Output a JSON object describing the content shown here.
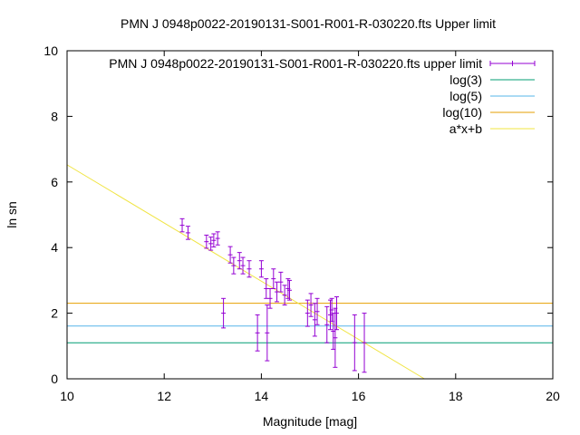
{
  "chart_data": {
    "type": "scatter",
    "title": "PMN J 0948p0022-20190131-S001-R001-R-030220.fts Upper limit",
    "xlabel": "Magnitude [mag]",
    "ylabel": "ln sn",
    "xlim": [
      10,
      20
    ],
    "ylim": [
      0,
      10
    ],
    "x_ticks": [
      10,
      12,
      14,
      16,
      18,
      20
    ],
    "y_ticks": [
      0,
      2,
      4,
      6,
      8,
      10
    ],
    "x_tick_labels": [
      "10",
      "12",
      "14",
      "16",
      "18",
      "20"
    ],
    "y_tick_labels": [
      "0",
      "2",
      "4",
      "6",
      "8",
      "10"
    ],
    "grid": false,
    "legend_placement": "top-right",
    "colors": {
      "series": "#9400d3",
      "log3": "#009e73",
      "log5": "#56b4e9",
      "log10": "#e69f00",
      "fit": "#f0e442"
    },
    "legend": [
      {
        "label": "PMN J 0948p0022-20190131-S001-R001-R-030220.fts upper limit",
        "kind": "errorbar",
        "color": "#9400d3"
      },
      {
        "label": "log(3)",
        "kind": "line",
        "color": "#009e73"
      },
      {
        "label": "log(5)",
        "kind": "line",
        "color": "#56b4e9"
      },
      {
        "label": "log(10)",
        "kind": "line",
        "color": "#e69f00"
      },
      {
        "label": "a*x+b",
        "kind": "line",
        "color": "#f0e442"
      }
    ],
    "series": [
      {
        "name": "PMN J 0948p0022-20190131-S001-R001-R-030220.fts upper limit",
        "points": [
          {
            "x": 12.37,
            "y": 4.68,
            "err": 0.2
          },
          {
            "x": 12.49,
            "y": 4.45,
            "err": 0.2
          },
          {
            "x": 12.87,
            "y": 4.18,
            "err": 0.2
          },
          {
            "x": 12.96,
            "y": 4.12,
            "err": 0.2
          },
          {
            "x": 13.02,
            "y": 4.22,
            "err": 0.2
          },
          {
            "x": 13.1,
            "y": 4.28,
            "err": 0.2
          },
          {
            "x": 13.22,
            "y": 2.0,
            "err": 0.45
          },
          {
            "x": 13.36,
            "y": 3.78,
            "err": 0.25
          },
          {
            "x": 13.43,
            "y": 3.45,
            "err": 0.25
          },
          {
            "x": 13.55,
            "y": 3.6,
            "err": 0.25
          },
          {
            "x": 13.62,
            "y": 3.45,
            "err": 0.25
          },
          {
            "x": 13.75,
            "y": 3.35,
            "err": 0.25
          },
          {
            "x": 13.92,
            "y": 1.4,
            "err": 0.55
          },
          {
            "x": 14.0,
            "y": 3.35,
            "err": 0.25
          },
          {
            "x": 14.1,
            "y": 2.75,
            "err": 0.3
          },
          {
            "x": 14.12,
            "y": 1.4,
            "err": 0.85
          },
          {
            "x": 14.18,
            "y": 2.45,
            "err": 0.3
          },
          {
            "x": 14.25,
            "y": 3.05,
            "err": 0.3
          },
          {
            "x": 14.32,
            "y": 2.65,
            "err": 0.3
          },
          {
            "x": 14.4,
            "y": 2.95,
            "err": 0.3
          },
          {
            "x": 14.48,
            "y": 2.55,
            "err": 0.3
          },
          {
            "x": 14.55,
            "y": 2.75,
            "err": 0.3
          },
          {
            "x": 14.58,
            "y": 2.7,
            "err": 0.3
          },
          {
            "x": 14.95,
            "y": 2.0,
            "err": 0.4
          },
          {
            "x": 15.02,
            "y": 2.25,
            "err": 0.35
          },
          {
            "x": 15.1,
            "y": 1.8,
            "err": 0.5
          },
          {
            "x": 15.15,
            "y": 2.05,
            "err": 0.4
          },
          {
            "x": 15.35,
            "y": 1.65,
            "err": 0.55
          },
          {
            "x": 15.42,
            "y": 1.95,
            "err": 0.45
          },
          {
            "x": 15.45,
            "y": 2.1,
            "err": 0.35
          },
          {
            "x": 15.48,
            "y": 1.45,
            "err": 0.55
          },
          {
            "x": 15.52,
            "y": 1.25,
            "err": 0.9
          },
          {
            "x": 15.55,
            "y": 2.0,
            "err": 0.5
          },
          {
            "x": 15.92,
            "y": 1.1,
            "err": 0.85
          },
          {
            "x": 16.12,
            "y": 1.1,
            "err": 0.9
          }
        ]
      }
    ],
    "reference_lines": [
      {
        "name": "log(3)",
        "y": 1.0986
      },
      {
        "name": "log(5)",
        "y": 1.6094
      },
      {
        "name": "log(10)",
        "y": 2.3026
      }
    ],
    "fit_line": {
      "name": "a*x+b",
      "slope": -0.8867,
      "intercept": 15.39
    }
  }
}
